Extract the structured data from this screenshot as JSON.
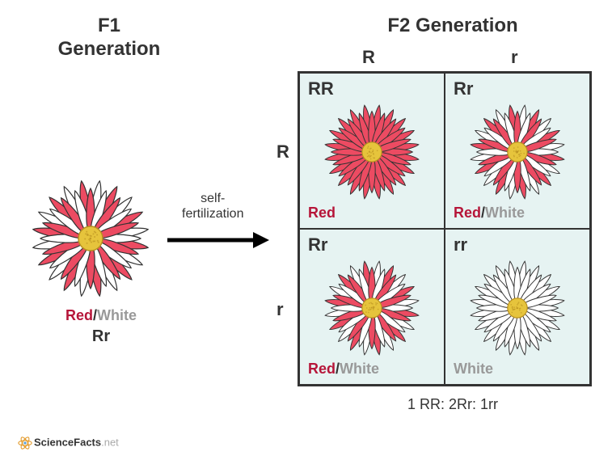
{
  "f1": {
    "title": "F1\nGeneration",
    "pheno_red": "Red",
    "pheno_slash": "/",
    "pheno_white": "White",
    "geno": "Rr",
    "flower": "mixed"
  },
  "arrow": {
    "label_line1": "self-",
    "label_line2": "fertilization",
    "color": "#000000"
  },
  "f2": {
    "title": "F2 Generation",
    "col1": "R",
    "col2": "r",
    "row1": "R",
    "row2": "r",
    "cells": [
      {
        "geno": "RR",
        "pheno_red": "Red",
        "pheno_slash": "",
        "pheno_white": "",
        "flower": "red"
      },
      {
        "geno": "Rr",
        "pheno_red": "Red",
        "pheno_slash": "/",
        "pheno_white": "White",
        "flower": "mixed"
      },
      {
        "geno": "Rr",
        "pheno_red": "Red",
        "pheno_slash": "/",
        "pheno_white": "White",
        "flower": "mixed"
      },
      {
        "geno": "rr",
        "pheno_red": "",
        "pheno_slash": "",
        "pheno_white": "White",
        "flower": "white"
      }
    ],
    "ratio": "1 RR: 2Rr: 1rr",
    "cell_bg": "#e6f3f2"
  },
  "colors": {
    "petal_red": "#ec4b62",
    "petal_white": "#ffffff",
    "petal_stroke": "#333333",
    "center_fill": "#e6c43c",
    "center_stroke": "#b89020",
    "text_red": "#b61539",
    "text_white": "#999999",
    "text_main": "#333333"
  },
  "attribution": {
    "brand": "ScienceFacts",
    "suffix": ".net"
  }
}
